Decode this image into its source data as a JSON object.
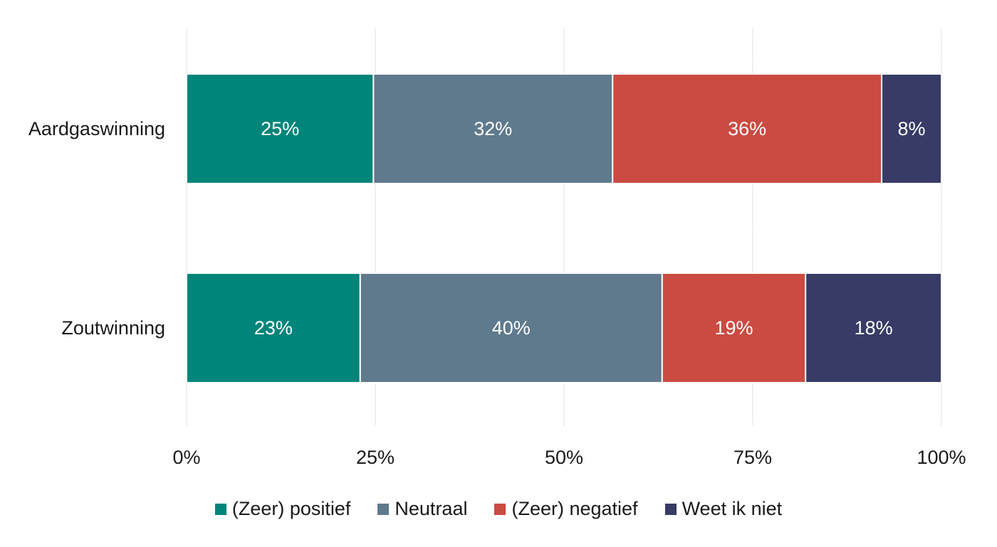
{
  "chart_data": {
    "type": "bar",
    "orientation": "horizontal",
    "stacked": "percent",
    "categories": [
      "Aardgaswinning",
      "Zoutwinning"
    ],
    "series": [
      {
        "name": "(Zeer) positief",
        "color": "#00857a",
        "values": [
          25,
          23
        ],
        "labels": [
          "25%",
          "23%"
        ]
      },
      {
        "name": "Neutraal",
        "color": "#5f7a8d",
        "values": [
          32,
          40
        ],
        "labels": [
          "32%",
          "40%"
        ]
      },
      {
        "name": "(Zeer) negatief",
        "color": "#cb4b42",
        "values": [
          36,
          19
        ],
        "labels": [
          "36%",
          "19%"
        ]
      },
      {
        "name": "Weet ik niet",
        "color": "#383b66",
        "values": [
          8,
          18
        ],
        "labels": [
          "8%",
          "18%"
        ]
      }
    ],
    "xlim": [
      0,
      100
    ],
    "xticks": [
      "0%",
      "25%",
      "50%",
      "75%",
      "100%"
    ],
    "grid": true,
    "legend_position": "bottom"
  }
}
